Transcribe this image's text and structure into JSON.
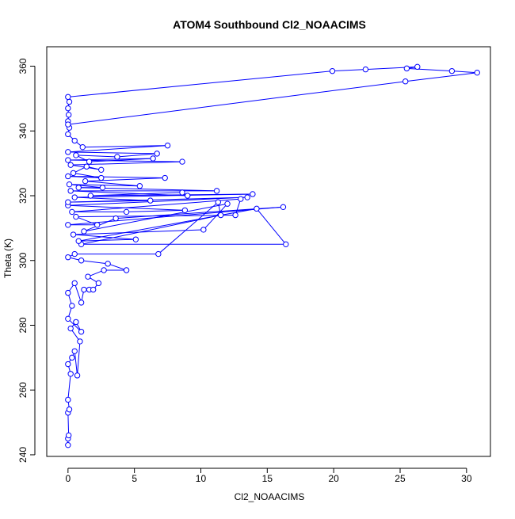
{
  "chart_data": {
    "type": "line",
    "title": "ATOM4 Southbound Cl2_NOAACIMS",
    "xlabel": "Cl2_NOAACIMS",
    "ylabel": "Theta (K)",
    "xlim": [
      -1.6,
      31.8
    ],
    "ylim": [
      239.5,
      366.0
    ],
    "x_ticks": [
      0,
      5,
      10,
      15,
      20,
      25,
      30
    ],
    "y_ticks": [
      240,
      260,
      280,
      300,
      320,
      340,
      360
    ],
    "series": [
      {
        "color": "#0000ff",
        "marker": "open-circle",
        "points": [
          [
            0.0,
            243.0
          ],
          [
            0.0,
            245.0
          ],
          [
            0.05,
            246.0
          ],
          [
            0.0,
            253.0
          ],
          [
            0.1,
            254.0
          ],
          [
            0.0,
            257.0
          ],
          [
            0.2,
            265.0
          ],
          [
            0.0,
            268.0
          ],
          [
            0.3,
            270.0
          ],
          [
            0.5,
            272.0
          ],
          [
            0.7,
            264.5
          ],
          [
            0.9,
            275.0
          ],
          [
            0.2,
            279.0
          ],
          [
            0.6,
            281.0
          ],
          [
            1.0,
            278.0
          ],
          [
            0.0,
            282.0
          ],
          [
            0.3,
            286.0
          ],
          [
            0.0,
            290.0
          ],
          [
            0.5,
            293.0
          ],
          [
            1.0,
            287.0
          ],
          [
            1.2,
            291.0
          ],
          [
            1.6,
            291.0
          ],
          [
            1.9,
            291.0
          ],
          [
            2.3,
            293.0
          ],
          [
            1.5,
            295.0
          ],
          [
            2.7,
            297.0
          ],
          [
            4.4,
            297.0
          ],
          [
            3.0,
            299.0
          ],
          [
            1.0,
            300.0
          ],
          [
            0.0,
            301.0
          ],
          [
            0.5,
            302.0
          ],
          [
            6.8,
            302.0
          ],
          [
            11.3,
            318.0
          ],
          [
            11.5,
            314.0
          ],
          [
            1.0,
            305.0
          ],
          [
            16.4,
            305.0
          ],
          [
            14.2,
            316.0
          ],
          [
            0.8,
            306.0
          ],
          [
            5.1,
            306.5
          ],
          [
            0.4,
            308.0
          ],
          [
            10.2,
            309.5
          ],
          [
            12.0,
            317.5
          ],
          [
            1.2,
            309.0
          ],
          [
            3.6,
            313.0
          ],
          [
            16.2,
            316.5
          ],
          [
            0.0,
            311.0
          ],
          [
            2.2,
            311.0
          ],
          [
            0.6,
            313.5
          ],
          [
            12.6,
            314.0
          ],
          [
            13.0,
            319.0
          ],
          [
            0.3,
            315.0
          ],
          [
            4.4,
            315.0
          ],
          [
            8.8,
            315.5
          ],
          [
            0.0,
            317.0
          ],
          [
            13.5,
            319.5
          ],
          [
            0.0,
            318.0
          ],
          [
            6.2,
            318.5
          ],
          [
            0.5,
            319.5
          ],
          [
            13.9,
            320.5
          ],
          [
            1.7,
            320.0
          ],
          [
            8.6,
            321.0
          ],
          [
            9.0,
            320.0
          ],
          [
            0.2,
            321.5
          ],
          [
            11.2,
            321.5
          ],
          [
            0.8,
            322.5
          ],
          [
            2.6,
            322.5
          ],
          [
            0.1,
            323.5
          ],
          [
            5.4,
            323.0
          ],
          [
            1.3,
            324.5
          ],
          [
            7.3,
            325.5
          ],
          [
            0.0,
            326.0
          ],
          [
            2.5,
            325.5
          ],
          [
            0.4,
            327.0
          ],
          [
            1.4,
            329.0
          ],
          [
            2.5,
            328.0
          ],
          [
            0.2,
            329.5
          ],
          [
            8.6,
            330.5
          ],
          [
            0.0,
            331.0
          ],
          [
            6.4,
            331.5
          ],
          [
            1.6,
            330.5
          ],
          [
            0.6,
            332.5
          ],
          [
            3.7,
            332.0
          ],
          [
            6.7,
            333.0
          ],
          [
            0.0,
            333.5
          ],
          [
            7.5,
            335.5
          ],
          [
            1.1,
            335.0
          ],
          [
            0.5,
            337.0
          ],
          [
            0.0,
            339.0
          ],
          [
            0.1,
            341.0
          ],
          [
            0.0,
            343.0
          ],
          [
            0.05,
            345.0
          ],
          [
            0.0,
            347.0
          ],
          [
            0.1,
            349.0
          ],
          [
            0.0,
            350.5
          ],
          [
            19.9,
            358.5
          ],
          [
            22.4,
            359.0
          ],
          [
            26.3,
            359.8
          ],
          [
            25.5,
            359.3
          ],
          [
            28.9,
            358.5
          ],
          [
            30.8,
            358.0
          ],
          [
            25.4,
            355.3
          ],
          [
            0.0,
            342.0
          ]
        ]
      }
    ]
  }
}
